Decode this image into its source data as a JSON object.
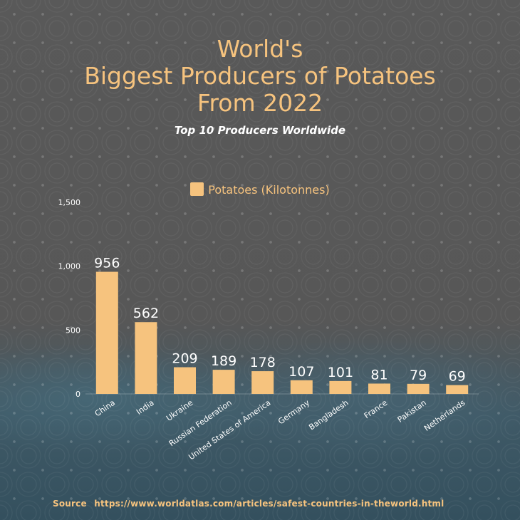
{
  "title_lines": [
    "World's",
    "Biggest Producers of Potatoes",
    "From 2022"
  ],
  "subtitle": "Top 10 Producers Worldwide",
  "source": {
    "label": "Source",
    "url": "https://www.worldatlas.com/articles/safest-countries-in-theworld.html"
  },
  "colors": {
    "accent": "#f6c37e",
    "text_light": "#ffffff"
  },
  "chart_data": {
    "type": "bar",
    "categories": [
      "China",
      "India",
      "Ukraine",
      "Russian Federation",
      "United States of America",
      "Germany",
      "Bangladesh",
      "France",
      "Pakistan",
      "Netherlands"
    ],
    "series": [
      {
        "name": "Potatoes (Kilotonnes)",
        "values": [
          956,
          562,
          209,
          189,
          178,
          107,
          101,
          81,
          79,
          69
        ],
        "labels": [
          "956",
          "562",
          "209",
          "189",
          "178",
          "107",
          "101",
          "81",
          "79",
          "69"
        ]
      }
    ],
    "ylim": [
      0,
      1500
    ],
    "yticks": [
      0,
      500,
      1000,
      1500
    ],
    "ytick_labels": [
      "0",
      "500",
      "1,000",
      "1,500"
    ],
    "grid": false,
    "legend": "top-center"
  }
}
